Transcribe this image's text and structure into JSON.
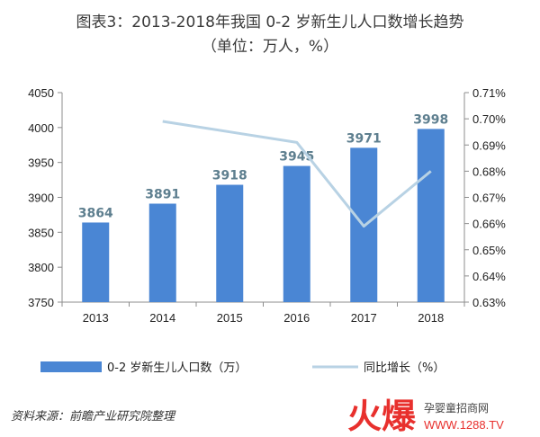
{
  "title_line1": "图表3：2013-2018年我国 0-2 岁新生儿人口数增长趋势",
  "title_line2": "（单位：万人，%）",
  "chart_data": {
    "type": "bar",
    "categories": [
      "2013",
      "2014",
      "2015",
      "2016",
      "2017",
      "2018"
    ],
    "series": [
      {
        "name": "0-2 岁新生儿人口数（万）",
        "type": "bar",
        "axis": "left",
        "color": "#4a86d4",
        "values": [
          3864,
          3891,
          3918,
          3945,
          3971,
          3998
        ],
        "data_labels": [
          "3864",
          "3891",
          "3918",
          "3945",
          "3971",
          "3998"
        ]
      },
      {
        "name": "同比增长（%）",
        "type": "line",
        "axis": "right",
        "color": "#b8d2e4",
        "values": [
          null,
          0.699,
          0.695,
          0.691,
          0.659,
          0.68
        ]
      }
    ],
    "y_left": {
      "range": [
        3750,
        4050
      ],
      "ticks": [
        "4050",
        "4000",
        "3950",
        "3900",
        "3850",
        "3800",
        "3750"
      ]
    },
    "y_right": {
      "range": [
        0.63,
        0.71
      ],
      "ticks": [
        "0.71%",
        "0.70%",
        "0.69%",
        "0.68%",
        "0.67%",
        "0.66%",
        "0.65%",
        "0.64%",
        "0.63%"
      ]
    },
    "grid": false,
    "legend_position": "bottom"
  },
  "source": "资料来源：前瞻产业研究院整理",
  "watermark": {
    "logo_text": "火爆",
    "site_name": "孕婴童招商网",
    "url": "WWW.1288.TV",
    "logo_color": "#e8302d"
  }
}
